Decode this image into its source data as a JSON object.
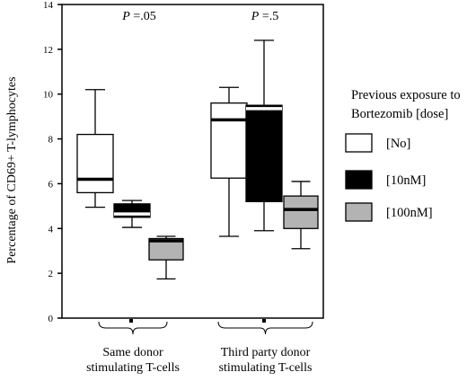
{
  "chart_data": {
    "type": "box",
    "ylabel": "Percentage of  CD69+ T-lymphocytes",
    "ylim": [
      0,
      14
    ],
    "yticks": [
      0,
      2,
      4,
      6,
      8,
      10,
      12,
      14
    ],
    "groups": [
      {
        "label_lines": [
          "Same donor",
          "stimulating T-cells"
        ],
        "p_prefix": "P",
        "p_value": " =.05",
        "boxes": [
          {
            "series": "[No]",
            "min": 4.95,
            "q1": 5.6,
            "median": 6.2,
            "q3": 8.2,
            "max": 10.2
          },
          {
            "series": "[10nM]",
            "min": 4.05,
            "q1": 4.5,
            "median": 4.65,
            "q3": 5.1,
            "max": 5.25
          },
          {
            "series": "[100nM]",
            "min": 1.75,
            "q1": 2.6,
            "median": 3.45,
            "q3": 3.55,
            "max": 3.65
          }
        ]
      },
      {
        "label_lines": [
          "Third party donor",
          "stimulating T-cells"
        ],
        "p_prefix": "P",
        "p_value": " =.5",
        "boxes": [
          {
            "series": "[No]",
            "min": 3.65,
            "q1": 6.25,
            "median": 8.85,
            "q3": 9.6,
            "max": 10.3
          },
          {
            "series": "[10nM]",
            "min": 3.9,
            "q1": 5.2,
            "median": 9.35,
            "q3": 9.5,
            "max": 12.4
          },
          {
            "series": "[100nM]",
            "min": 3.1,
            "q1": 4.0,
            "median": 4.85,
            "q3": 5.45,
            "max": 6.1
          }
        ]
      }
    ],
    "legend": {
      "title_lines": [
        "Previous exposure to",
        "Bortezomib [dose]"
      ],
      "entries": [
        {
          "label": "[No]",
          "color": "#ffffff"
        },
        {
          "label": "[10nM]",
          "color": "#000000"
        },
        {
          "label": "[100nM]",
          "color": "#b3b3b3"
        }
      ]
    },
    "grid": false
  }
}
